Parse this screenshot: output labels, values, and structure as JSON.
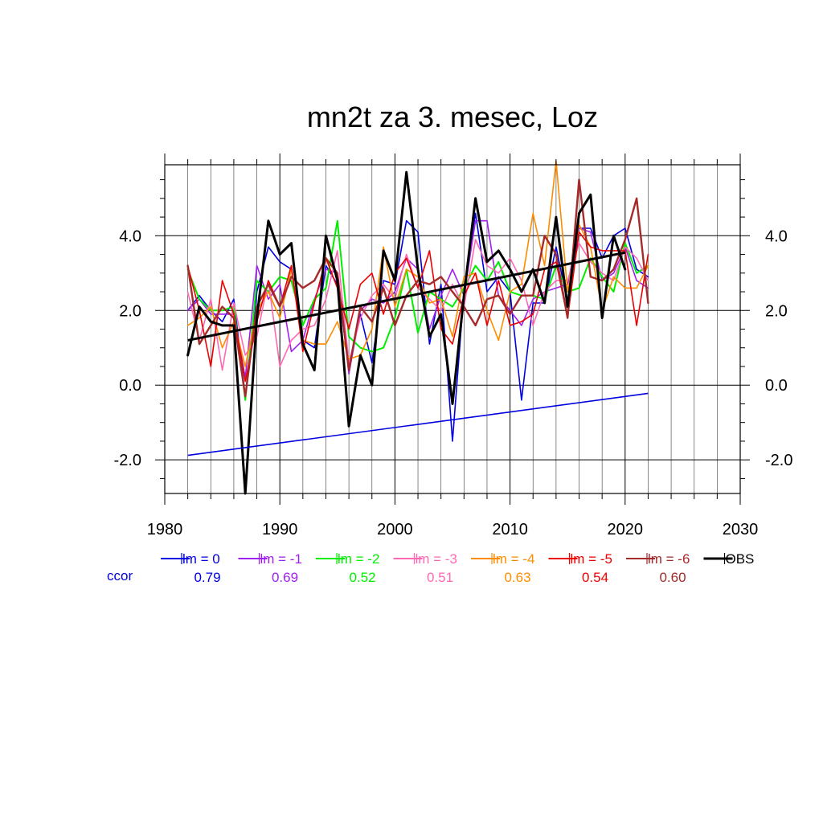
{
  "chart_data": {
    "type": "line",
    "title": "mn2t za 3. mesec, Loz",
    "xlabel": "",
    "ylabel": "",
    "xlim": [
      1980,
      2030
    ],
    "ylim": [
      -2.9,
      5.9
    ],
    "x_ticks": [
      "1980",
      "1990",
      "2000",
      "2010",
      "2020",
      "2030"
    ],
    "y_ticks": [
      "-2.0",
      "0.0",
      "2.0",
      "4.0"
    ],
    "grid": true,
    "x": [
      1982,
      1983,
      1984,
      1985,
      1986,
      1987,
      1988,
      1989,
      1990,
      1991,
      1992,
      1993,
      1994,
      1995,
      1996,
      1997,
      1998,
      1999,
      2000,
      2001,
      2002,
      2003,
      2004,
      2005,
      2006,
      2007,
      2008,
      2009,
      2010,
      2011,
      2012,
      2013,
      2014,
      2015,
      2016,
      2017,
      2018,
      2019,
      2020,
      2021,
      2022
    ],
    "series": [
      {
        "name": "lm = 0",
        "color": "#0000e0",
        "width": 1.6,
        "ccor": "0.79",
        "values": [
          2.0,
          2.4,
          2.0,
          1.7,
          2.3,
          -0.3,
          2.5,
          3.7,
          3.3,
          3.1,
          1.2,
          1.0,
          3.2,
          2.7,
          0.5,
          1.9,
          0.6,
          2.8,
          2.7,
          4.4,
          4.1,
          1.1,
          2.7,
          -1.5,
          2.5,
          4.6,
          2.5,
          2.9,
          2.5,
          -0.4,
          2.2,
          2.2,
          3.7,
          2.2,
          4.2,
          4.2,
          3.4,
          4.0,
          4.2,
          3.1,
          2.9
        ]
      },
      {
        "name": "lm = -1",
        "color": "#a020f0",
        "width": 1.6,
        "ccor": "0.69",
        "values": [
          2.0,
          2.3,
          1.9,
          1.9,
          1.9,
          0.2,
          3.2,
          2.3,
          2.7,
          0.9,
          1.2,
          2.3,
          3.1,
          3.0,
          0.3,
          2.0,
          2.3,
          2.2,
          2.5,
          3.4,
          3.1,
          1.5,
          2.4,
          3.1,
          2.4,
          4.4,
          4.4,
          2.4,
          2.0,
          1.6,
          2.3,
          2.5,
          2.6,
          2.7,
          4.2,
          4.1,
          2.8,
          3.0,
          3.7,
          2.8,
          2.6
        ]
      },
      {
        "name": "lm = -2",
        "color": "#00ee00",
        "width": 2.0,
        "ccor": "0.52",
        "values": [
          3.1,
          2.3,
          2.0,
          2.0,
          2.1,
          -0.4,
          2.8,
          2.5,
          2.9,
          2.8,
          1.6,
          2.3,
          2.6,
          4.4,
          1.3,
          1.0,
          0.9,
          1.0,
          1.8,
          3.1,
          1.4,
          2.5,
          2.3,
          2.1,
          2.6,
          3.2,
          2.8,
          3.3,
          2.5,
          2.4,
          2.4,
          2.3,
          3.2,
          2.5,
          2.6,
          3.4,
          2.9,
          2.5,
          3.8,
          3.0,
          3.2
        ]
      },
      {
        "name": "lm = -3",
        "color": "#ff69b4",
        "width": 1.6,
        "ccor": "0.51",
        "values": [
          2.5,
          1.2,
          2.3,
          0.4,
          2.2,
          0.8,
          1.3,
          2.8,
          0.5,
          1.2,
          1.5,
          1.6,
          2.3,
          3.6,
          0.6,
          1.8,
          2.4,
          2.7,
          2.3,
          3.5,
          2.6,
          2.3,
          2.0,
          2.7,
          2.1,
          3.9,
          3.2,
          3.0,
          3.4,
          2.8,
          1.6,
          2.5,
          2.8,
          2.8,
          3.8,
          3.3,
          3.0,
          2.8,
          3.7,
          3.4,
          2.8
        ]
      },
      {
        "name": "lm = -4",
        "color": "#ff8c00",
        "width": 1.6,
        "ccor": "0.63",
        "values": [
          1.6,
          1.8,
          2.1,
          1.0,
          1.7,
          0.5,
          2.0,
          2.5,
          1.8,
          3.1,
          1.2,
          1.1,
          1.1,
          1.7,
          0.7,
          0.8,
          1.5,
          3.7,
          2.1,
          3.1,
          2.9,
          2.2,
          2.3,
          1.3,
          2.9,
          3.0,
          2.0,
          1.2,
          2.5,
          2.7,
          4.6,
          3.2,
          6.0,
          2.5,
          4.3,
          3.7,
          2.0,
          2.9,
          2.6,
          2.6,
          3.2
        ]
      },
      {
        "name": "lm = -5",
        "color": "#ee0000",
        "width": 1.6,
        "ccor": "0.54",
        "values": [
          3.2,
          2.0,
          0.5,
          2.8,
          1.9,
          0.1,
          1.7,
          2.8,
          2.1,
          3.2,
          0.9,
          2.2,
          3.4,
          2.6,
          1.5,
          2.7,
          3.0,
          1.9,
          3.0,
          3.4,
          2.6,
          3.6,
          1.5,
          1.1,
          2.4,
          3.0,
          1.6,
          2.8,
          1.6,
          1.7,
          1.9,
          3.1,
          3.3,
          1.8,
          4.1,
          3.7,
          3.6,
          3.6,
          3.6,
          1.6,
          3.5
        ]
      },
      {
        "name": "lm = -6",
        "color": "#a52a2a",
        "width": 2.4,
        "ccor": "0.60",
        "values": [
          3.2,
          1.1,
          1.6,
          2.1,
          1.8,
          -0.3,
          2.1,
          2.7,
          2.1,
          2.9,
          2.6,
          2.8,
          3.4,
          3.0,
          0.4,
          2.1,
          1.7,
          2.6,
          1.6,
          2.4,
          2.8,
          2.7,
          2.9,
          2.5,
          2.1,
          1.6,
          2.3,
          2.4,
          1.9,
          2.4,
          2.4,
          4.0,
          3.5,
          1.8,
          5.5,
          2.9,
          2.8,
          3.1,
          3.9,
          5.0,
          2.2
        ]
      },
      {
        "name": "OBS",
        "color": "#000000",
        "width": 3.0,
        "ccor": "",
        "values": [
          0.8,
          2.1,
          1.7,
          1.6,
          1.6,
          -2.9,
          1.8,
          4.4,
          3.5,
          3.8,
          1.1,
          0.4,
          4.0,
          2.8,
          -1.1,
          0.8,
          0.0,
          3.6,
          2.8,
          5.7,
          3.1,
          1.3,
          1.9,
          -0.5,
          2.4,
          5.0,
          3.3,
          3.6,
          3.1,
          2.5,
          3.1,
          2.2,
          4.5,
          2.1,
          4.6,
          5.1,
          1.8,
          4.0,
          3.1,
          null,
          null
        ]
      }
    ],
    "trend_lines": [
      {
        "name": "lm = 0 trend",
        "color": "#0000e0",
        "x": [
          1982,
          2022
        ],
        "y": [
          -1.88,
          -0.22
        ]
      },
      {
        "name": "OBS trend",
        "color": "#000000",
        "x": [
          1982,
          2020
        ],
        "y": [
          1.2,
          3.55
        ]
      }
    ],
    "legend": {
      "placement": "bottom",
      "ccor_label": "ccor"
    }
  }
}
